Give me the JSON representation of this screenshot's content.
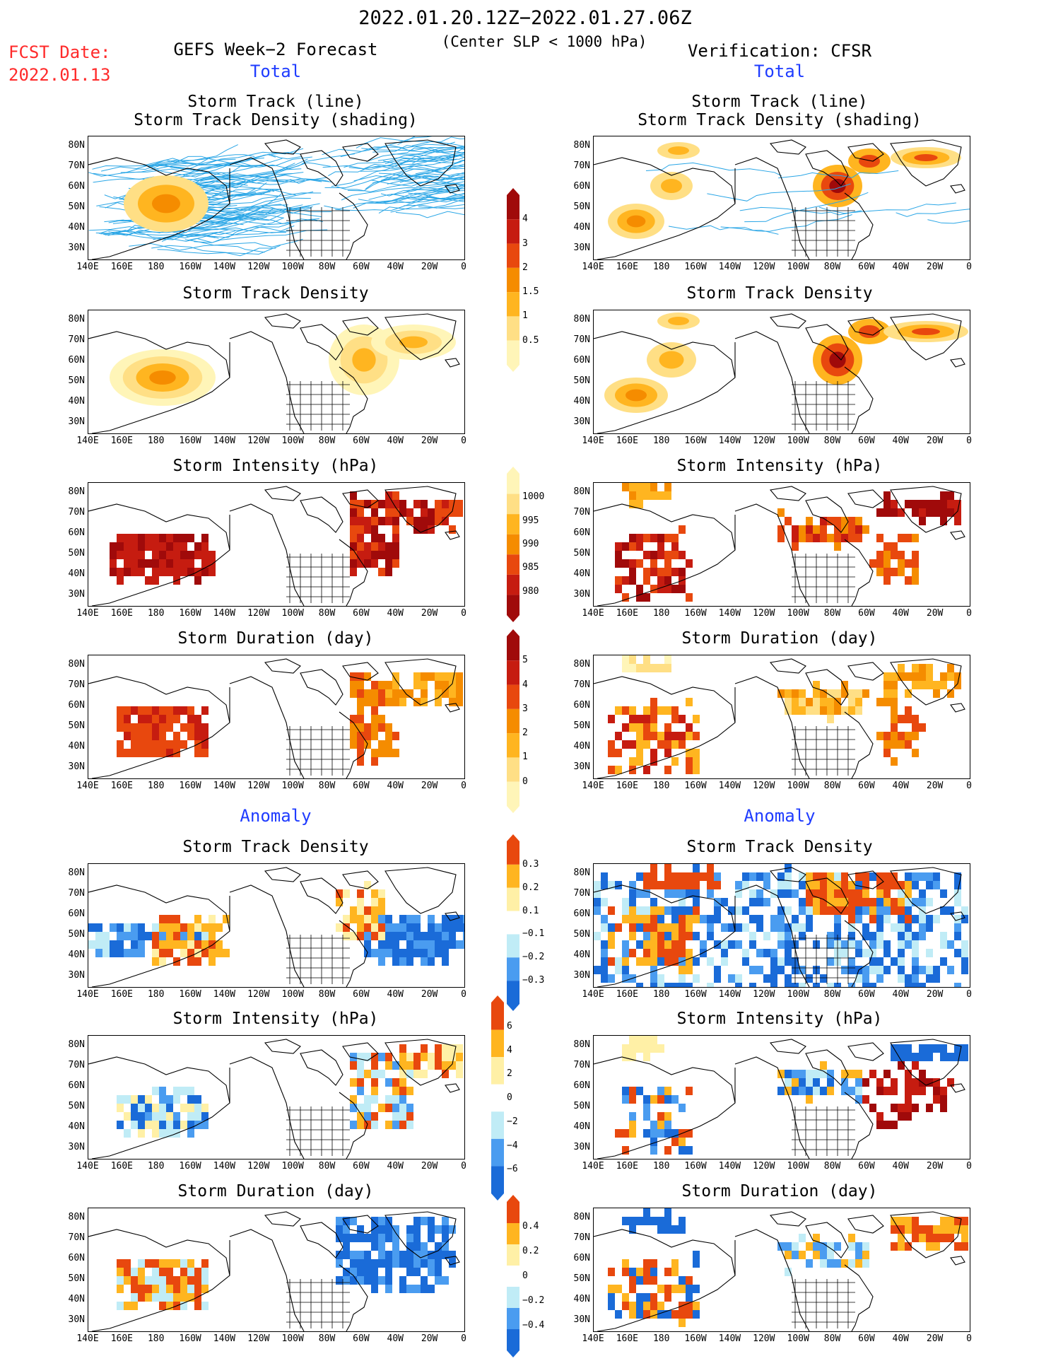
{
  "header": {
    "period": "2022.01.20.12Z−2022.01.27.06Z",
    "criterion": "(Center SLP < 1000 hPa)",
    "fcst_label": "FCST Date:",
    "fcst_date": "2022.01.13",
    "left_title": "GEFS Week−2 Forecast",
    "right_title": "Verification: CFSR",
    "total_left": "Total",
    "total_right": "Total",
    "anomaly_left": "Anomaly",
    "anomaly_right": "Anomaly"
  },
  "panels": {
    "track_line": "Storm Track (line)",
    "track_density_shading": "Storm Track Density (shading)",
    "track_density": "Storm Track Density",
    "intensity": "Storm Intensity (hPa)",
    "duration": "Storm Duration (day)"
  },
  "axes": {
    "lats": [
      "80N",
      "70N",
      "60N",
      "50N",
      "40N",
      "30N"
    ],
    "lons": [
      "140E",
      "160E",
      "180",
      "160W",
      "140W",
      "120W",
      "100W",
      "80W",
      "60W",
      "40W",
      "20W",
      "0"
    ]
  },
  "colorbars": {
    "density": [
      "4",
      "3",
      "2",
      "1.5",
      "1",
      "0.5"
    ],
    "intensity": [
      "1000",
      "995",
      "990",
      "985",
      "980"
    ],
    "duration": [
      "5",
      "4",
      "3",
      "2",
      "1",
      "0"
    ],
    "density_anom": [
      "0.3",
      "0.2",
      "0.1",
      "−0.1",
      "−0.2",
      "−0.3"
    ],
    "intensity_anom": [
      "6",
      "4",
      "2",
      "0",
      "−2",
      "−4",
      "−6"
    ],
    "duration_anom": [
      "0.4",
      "0.2",
      "0",
      "−0.2",
      "−0.4"
    ]
  },
  "colors": {
    "track_line": "#2aa6e6",
    "map_line": "#000000",
    "title_red": "#ff2a2a",
    "section_blue": "#1f3cff",
    "warm_scale": [
      "#fff5b8",
      "#ffdf85",
      "#ffb520",
      "#f58c00",
      "#e8480e",
      "#c61c10",
      "#a00a0a"
    ],
    "anom_scale": [
      "#1a6bd8",
      "#4a9cf0",
      "#c0ecf6",
      "#ffffff",
      "#fff0a6",
      "#ffb520",
      "#e8480e"
    ]
  }
}
